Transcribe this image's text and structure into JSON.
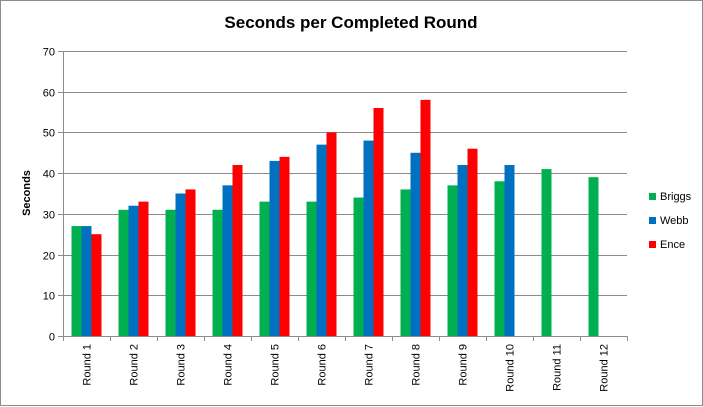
{
  "chart_data": {
    "type": "bar",
    "title": "Seconds per Completed Round",
    "xlabel": "",
    "ylabel": "Seconds",
    "ylim": [
      0,
      70
    ],
    "ytick_step": 10,
    "grid": true,
    "legend_position": "right",
    "categories": [
      "Round 1",
      "Round 2",
      "Round 3",
      "Round 4",
      "Round 5",
      "Round 6",
      "Round 7",
      "Round 8",
      "Round 9",
      "Round 10",
      "Round 11",
      "Round 12"
    ],
    "series": [
      {
        "name": "Briggs",
        "color": "#00b050",
        "values": [
          27,
          31,
          31,
          31,
          33,
          33,
          34,
          36,
          37,
          38,
          41,
          39
        ]
      },
      {
        "name": "Webb",
        "color": "#0070c0",
        "values": [
          27,
          32,
          35,
          37,
          43,
          47,
          48,
          45,
          42,
          42,
          null,
          null
        ]
      },
      {
        "name": "Ence",
        "color": "#ff0000",
        "values": [
          25,
          33,
          36,
          42,
          44,
          50,
          56,
          58,
          46,
          null,
          null,
          null
        ]
      }
    ]
  }
}
